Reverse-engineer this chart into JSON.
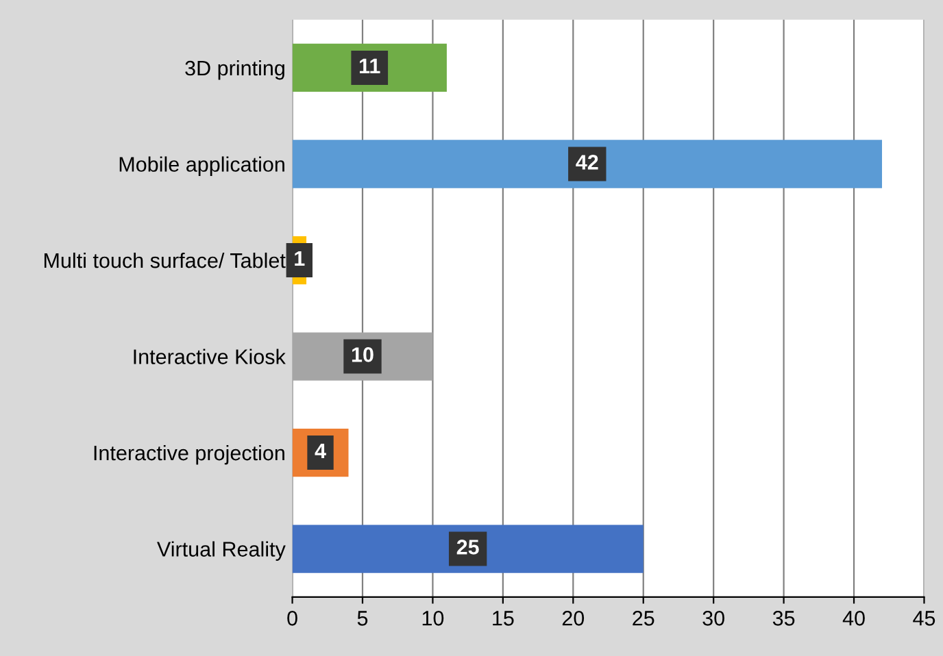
{
  "chart_data": {
    "type": "bar",
    "orientation": "horizontal",
    "categories": [
      "3D printing",
      "Mobile application",
      "Multi touch surface/ Tablet",
      "Interactive Kiosk",
      "Interactive projection",
      "Virtual Reality"
    ],
    "values": [
      11,
      42,
      1,
      10,
      4,
      25
    ],
    "colors": [
      "#70ad47",
      "#5b9bd5",
      "#ffc000",
      "#a5a5a5",
      "#ed7d31",
      "#4472c4"
    ],
    "xlim": [
      0,
      45
    ],
    "xticks": [
      0,
      5,
      10,
      15,
      20,
      25,
      30,
      35,
      40,
      45
    ],
    "grid": "x",
    "data_labels": true
  }
}
